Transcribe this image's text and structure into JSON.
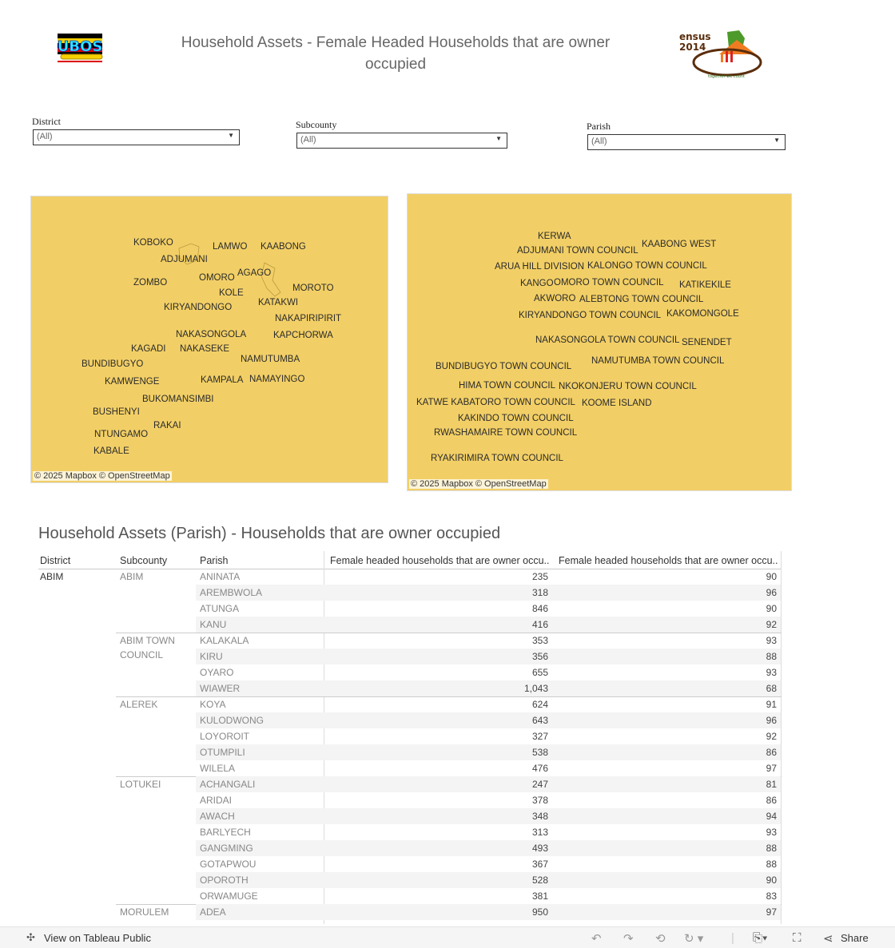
{
  "header": {
    "title": "Household Assets  - Female Headed Households that are owner occupied",
    "logo_left_text": "UBOS",
    "logo_right_text": "Census 2014",
    "logo_right_tagline": "together we count"
  },
  "filters": [
    {
      "label": "District",
      "value": "(All)"
    },
    {
      "label": "Subcounty",
      "value": "(All)"
    },
    {
      "label": "Parish",
      "value": "(All)"
    }
  ],
  "colors": {
    "map_fill": "#f2cf66",
    "band": "#f4f4f4"
  },
  "map_left": {
    "attribution": "© 2025 Mapbox  © OpenStreetMap",
    "labels": [
      "KOBOKO",
      "LAMWO",
      "KAABONG",
      "ADJUMANI",
      "OMORO",
      "AGAGO",
      "ZOMBO",
      "MOROTO",
      "KOLE",
      "KATAKWI",
      "KIRYANDONGO",
      "NAKAPIRIPIRIT",
      "NAKASONGOLA",
      "KAPCHORWA",
      "KAGADI",
      "NAKASEKE",
      "NAMUTUMBA",
      "BUNDIBUGYO",
      "KAMWENGE",
      "KAMPALA",
      "NAMAYINGO",
      "BUKOMANSIMBI",
      "BUSHENYI",
      "RAKAI",
      "NTUNGAMO",
      "KABALE"
    ]
  },
  "map_right": {
    "attribution": "© 2025 Mapbox  © OpenStreetMap",
    "labels": [
      "KERWA",
      "ADJUMANI TOWN COUNCIL",
      "KAABONG WEST",
      "ARUA HILL DIVISION",
      "KALONGO TOWN COUNCIL",
      "KANGO",
      "OMORO TOWN COUNCIL",
      "KATIKEKILE",
      "AKWORO",
      "ALEBTONG TOWN COUNCIL",
      "KIRYANDONGO TOWN COUNCIL",
      "KAKOMONGOLE",
      "NAKASONGOLA TOWN COUNCIL",
      "SENENDET",
      "BUNDIBUGYO TOWN COUNCIL",
      "NAMUTUMBA TOWN COUNCIL",
      "HIMA TOWN COUNCIL",
      "NKOKONJERU TOWN COUNCIL",
      "KATWE KABATORO TOWN COUNCIL",
      "KOOME ISLAND",
      "KAKINDO TOWN COUNCIL",
      "RWASHAMAIRE TOWN COUNCIL",
      "RYAKIRIMIRA TOWN COUNCIL"
    ]
  },
  "table": {
    "title": "Household Assets (Parish) - Households that are owner occupied",
    "headers": [
      "District",
      "Subcounty",
      "Parish",
      "Female headed households that are owner occu..",
      "Female headed households that are owner occu.."
    ],
    "district": "ABIM",
    "groups": [
      {
        "subcounty": [
          "ABIM"
        ],
        "rows": [
          [
            "ANINATA",
            "235",
            "90"
          ],
          [
            "AREMBWOLA",
            "318",
            "96"
          ],
          [
            "ATUNGA",
            "846",
            "90"
          ],
          [
            "KANU",
            "416",
            "92"
          ]
        ]
      },
      {
        "subcounty": [
          "ABIM TOWN",
          "COUNCIL"
        ],
        "rows": [
          [
            "KALAKALA",
            "353",
            "93"
          ],
          [
            "KIRU",
            "356",
            "88"
          ],
          [
            "OYARO",
            "655",
            "93"
          ],
          [
            "WIAWER",
            "1,043",
            "68"
          ]
        ]
      },
      {
        "subcounty": [
          "ALEREK"
        ],
        "rows": [
          [
            "KOYA",
            "624",
            "91"
          ],
          [
            "KULODWONG",
            "643",
            "96"
          ],
          [
            "LOYOROIT",
            "327",
            "92"
          ],
          [
            "OTUMPILI",
            "538",
            "86"
          ],
          [
            "WILELA",
            "476",
            "97"
          ]
        ]
      },
      {
        "subcounty": [
          "LOTUKEI"
        ],
        "rows": [
          [
            "ACHANGALI",
            "247",
            "81"
          ],
          [
            "ARIDAI",
            "378",
            "86"
          ],
          [
            "AWACH",
            "348",
            "94"
          ],
          [
            "BARLYECH",
            "313",
            "93"
          ],
          [
            "GANGMING",
            "493",
            "88"
          ],
          [
            "GOTAPWOU",
            "367",
            "88"
          ],
          [
            "OPOROTH",
            "528",
            "90"
          ],
          [
            "ORWAMUGE",
            "381",
            "83"
          ]
        ]
      },
      {
        "subcounty": [
          "MORULEM"
        ],
        "rows": [
          [
            "ADEA",
            "950",
            "97"
          ]
        ]
      }
    ]
  },
  "footer": {
    "view_label": "View on Tableau Public",
    "share_label": "Share"
  }
}
